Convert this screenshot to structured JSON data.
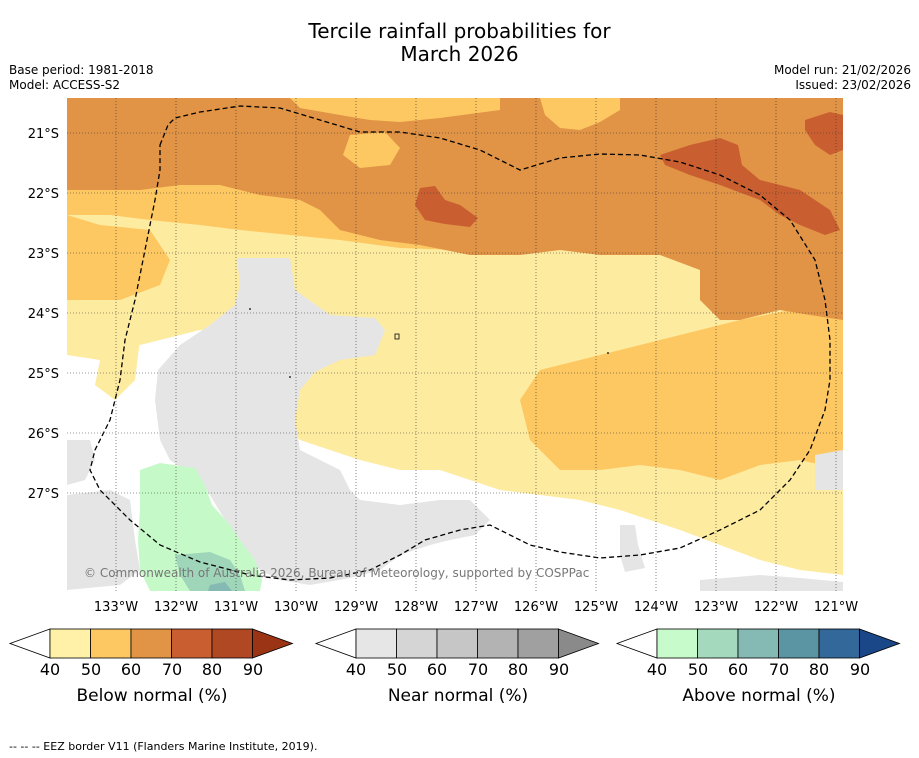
{
  "title": {
    "line1": "Tercile rainfall probabilities for",
    "line2": "March 2026"
  },
  "meta": {
    "base_period": "Base period: 1981-2018",
    "model": "Model: ACCESS-S2",
    "model_run": "Model run: 21/02/2026",
    "issued": "Issued: 23/02/2026"
  },
  "map": {
    "lat_labels": [
      "21°S",
      "22°S",
      "23°S",
      "24°S",
      "25°S",
      "26°S",
      "27°S"
    ],
    "lon_labels": [
      "133°W",
      "132°W",
      "131°W",
      "130°W",
      "129°W",
      "128°W",
      "127°W",
      "126°W",
      "125°W",
      "124°W",
      "123°W",
      "122°W",
      "121°W"
    ],
    "copyright": "© Commonwealth of Australia 2026, Bureau of Meteorology, supported by COSPPac",
    "colors": {
      "below_40": "#fdeba0",
      "below_50": "#fdc862",
      "below_60": "#e19346",
      "below_70": "#c95f30",
      "near_40": "#e5e5e5",
      "above_40": "#c6f9c8",
      "above_50": "#9fd5b9"
    }
  },
  "colorbars": {
    "ticks": [
      "40",
      "50",
      "60",
      "70",
      "80",
      "90"
    ],
    "below": {
      "label": "Below normal (%)",
      "colors": [
        "#fff2a8",
        "#fdc862",
        "#e19346",
        "#c95f30",
        "#b04824",
        "#9b3415"
      ]
    },
    "near": {
      "label": "Near normal (%)",
      "colors": [
        "#e6e6e6",
        "#d5d5d5",
        "#c6c6c6",
        "#b3b3b3",
        "#a0a0a0",
        "#8a8a8a"
      ]
    },
    "above": {
      "label": "Above normal (%)",
      "colors": [
        "#c8fbcc",
        "#a4d9bd",
        "#85b9b3",
        "#5b94a3",
        "#32689a",
        "#1a4788"
      ]
    }
  },
  "footer": {
    "legend": "--  --  -- EEZ border V11 (Flanders Marine Institute, 2019)."
  }
}
